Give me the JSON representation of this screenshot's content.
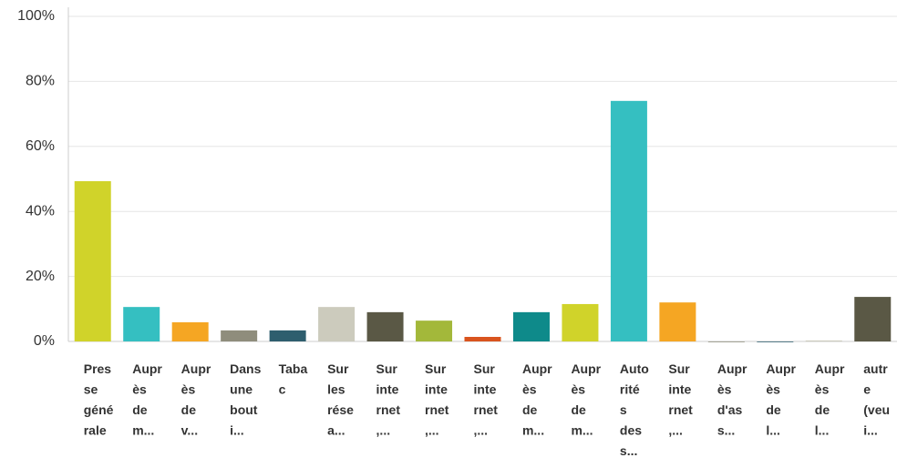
{
  "chart_data": {
    "type": "bar",
    "categories": [
      "Presse générale",
      "Auprès de m...",
      "Auprès de v...",
      "Dans une bouti...",
      "Tabac",
      "Sur les résea...",
      "Sur internet,...",
      "Sur internet,...",
      "Sur internet,...",
      "Auprès de m...",
      "Auprès de m...",
      "Autorités des s...",
      "Sur internet,...",
      "Auprès d'ass...",
      "Auprès de l...",
      "Auprès de l...",
      "autre (veui..."
    ],
    "values": [
      49.3,
      10.6,
      5.9,
      3.4,
      3.4,
      10.6,
      9,
      6.4,
      1.4,
      9,
      11.5,
      74,
      12,
      0,
      0,
      0.3,
      13.7
    ],
    "colors": [
      "#d0d32a",
      "#35bfc1",
      "#f5a623",
      "#8f8d7c",
      "#2e5e6e",
      "#cccbbd",
      "#5a5845",
      "#a3b83a",
      "#d9541e",
      "#0e8a8a",
      "#d0d32a",
      "#35bfc1",
      "#f5a623",
      "#8f8d7c",
      "#2e5e6e",
      "#cccbbd",
      "#5a5845"
    ],
    "ylim": [
      0,
      100
    ],
    "yticks": [
      {
        "value": 0,
        "label": "0%"
      },
      {
        "value": 20,
        "label": "20%"
      },
      {
        "value": 40,
        "label": "40%"
      },
      {
        "value": 60,
        "label": "60%"
      },
      {
        "value": 80,
        "label": "80%"
      },
      {
        "value": 100,
        "label": "100%"
      }
    ],
    "grid": true
  }
}
